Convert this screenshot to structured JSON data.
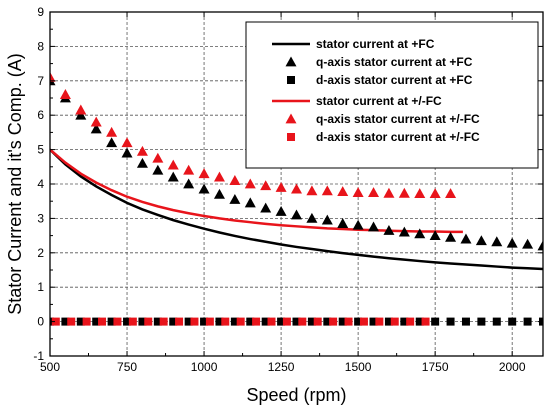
{
  "chart_data": {
    "type": "line",
    "xlabel": "Speed (rpm)",
    "ylabel": "Stator Current and it's Comp. (A)",
    "xlim": [
      500,
      2100
    ],
    "ylim": [
      -1,
      9
    ],
    "x_ticks": [
      "500",
      "750",
      "1000",
      "1250",
      "1500",
      "1750",
      "2000"
    ],
    "y_ticks": [
      "-1",
      "0",
      "1",
      "2",
      "3",
      "4",
      "5",
      "6",
      "7",
      "8",
      "9"
    ],
    "grid": true,
    "legend_position": "top-right",
    "series": [
      {
        "name": "stator current at +FC",
        "kind": "line",
        "color": "#000000",
        "x": [
          500,
          550,
          600,
          650,
          700,
          750,
          800,
          850,
          900,
          950,
          1000,
          1050,
          1100,
          1150,
          1200,
          1250,
          1300,
          1350,
          1400,
          1450,
          1500,
          1550,
          1600,
          1650,
          1700,
          1750,
          1800,
          1850,
          1900,
          1950,
          2000,
          2050,
          2100
        ],
        "y": [
          5.0,
          4.57,
          4.22,
          3.93,
          3.68,
          3.45,
          3.26,
          3.1,
          2.95,
          2.82,
          2.7,
          2.59,
          2.49,
          2.4,
          2.32,
          2.24,
          2.17,
          2.11,
          2.05,
          1.99,
          1.94,
          1.89,
          1.84,
          1.8,
          1.76,
          1.72,
          1.69,
          1.66,
          1.63,
          1.6,
          1.57,
          1.55,
          1.53
        ]
      },
      {
        "name": "q-axis stator current at +FC",
        "kind": "triangle",
        "color": "#000000",
        "x": [
          500,
          550,
          600,
          650,
          700,
          750,
          800,
          850,
          900,
          950,
          1000,
          1050,
          1100,
          1150,
          1200,
          1250,
          1300,
          1350,
          1400,
          1450,
          1500,
          1550,
          1600,
          1650,
          1700,
          1750,
          1800,
          1850,
          1900,
          1950,
          2000,
          2050,
          2100
        ],
        "y": [
          7.0,
          6.5,
          6.0,
          5.6,
          5.2,
          4.9,
          4.6,
          4.4,
          4.2,
          4.0,
          3.85,
          3.7,
          3.55,
          3.45,
          3.3,
          3.2,
          3.1,
          3.0,
          2.95,
          2.85,
          2.8,
          2.75,
          2.65,
          2.6,
          2.55,
          2.5,
          2.45,
          2.4,
          2.35,
          2.32,
          2.28,
          2.25,
          2.2
        ]
      },
      {
        "name": "d-axis stator current at +FC",
        "kind": "square",
        "color": "#000000",
        "x": [
          500,
          550,
          600,
          650,
          700,
          750,
          800,
          850,
          900,
          950,
          1000,
          1050,
          1100,
          1150,
          1200,
          1250,
          1300,
          1350,
          1400,
          1450,
          1500,
          1550,
          1600,
          1650,
          1700,
          1750,
          1800,
          1850,
          1900,
          1950,
          2000,
          2050,
          2100
        ],
        "y": [
          0,
          0,
          0,
          0,
          0,
          0,
          0,
          0,
          0,
          0,
          0,
          0,
          0,
          0,
          0,
          0,
          0,
          0,
          0,
          0,
          0,
          0,
          0,
          0,
          0,
          0,
          0,
          0,
          0,
          0,
          0,
          0,
          0
        ]
      },
      {
        "name": "stator current at +/-FC",
        "kind": "line",
        "color": "#e8141b",
        "x": [
          500,
          550,
          600,
          650,
          700,
          750,
          800,
          850,
          900,
          950,
          1000,
          1050,
          1100,
          1150,
          1200,
          1250,
          1300,
          1350,
          1400,
          1450,
          1500,
          1550,
          1600,
          1650,
          1700,
          1750,
          1800,
          1840
        ],
        "y": [
          5.0,
          4.62,
          4.3,
          4.04,
          3.82,
          3.63,
          3.48,
          3.35,
          3.24,
          3.15,
          3.07,
          3.0,
          2.94,
          2.89,
          2.84,
          2.8,
          2.77,
          2.74,
          2.71,
          2.69,
          2.67,
          2.66,
          2.64,
          2.63,
          2.62,
          2.62,
          2.61,
          2.61
        ]
      },
      {
        "name": "q-axis stator current at +/-FC",
        "kind": "triangle",
        "color": "#e8141b",
        "x": [
          500,
          550,
          600,
          650,
          700,
          750,
          800,
          850,
          900,
          950,
          1000,
          1050,
          1100,
          1150,
          1200,
          1250,
          1300,
          1350,
          1400,
          1450,
          1500,
          1550,
          1600,
          1650,
          1700,
          1750,
          1800
        ],
        "y": [
          7.1,
          6.6,
          6.15,
          5.8,
          5.5,
          5.2,
          4.95,
          4.75,
          4.55,
          4.4,
          4.3,
          4.2,
          4.1,
          4.0,
          3.95,
          3.9,
          3.85,
          3.8,
          3.8,
          3.78,
          3.75,
          3.75,
          3.73,
          3.73,
          3.72,
          3.72,
          3.72
        ]
      },
      {
        "name": "d-axis stator current at +/-FC",
        "kind": "square",
        "color": "#e8141b",
        "x": [
          500,
          550,
          600,
          650,
          700,
          750,
          800,
          850,
          900,
          950,
          1000,
          1050,
          1100,
          1150,
          1200,
          1250,
          1300,
          1350,
          1400,
          1450,
          1500,
          1550,
          1600,
          1650,
          1700,
          1750,
          1800
        ],
        "y": [
          0,
          0,
          0,
          0,
          0,
          0,
          0,
          0,
          0,
          0,
          0,
          0,
          0,
          0,
          0,
          0,
          0,
          0,
          0,
          0,
          0,
          0,
          0,
          0,
          0,
          0,
          0
        ]
      }
    ]
  }
}
